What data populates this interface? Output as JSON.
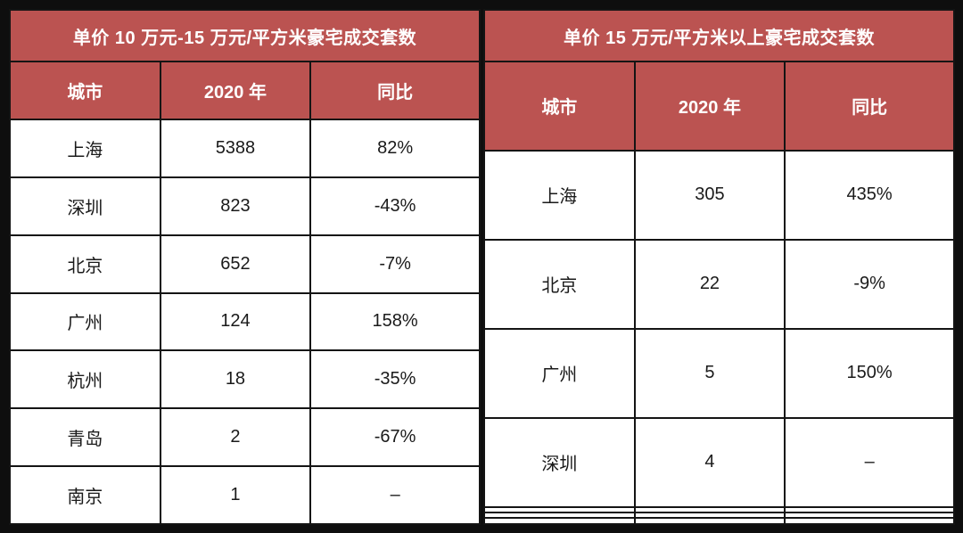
{
  "colors": {
    "header_bg": "#BB5351",
    "header_text": "#FFFFFF",
    "cell_bg": "#FFFFFF",
    "cell_text": "#1A1A1A",
    "frame": "#0E0E0E"
  },
  "chart_data": [
    {
      "type": "table",
      "title": "单价 10 万元-15 万元/平方米豪宅成交套数",
      "columns": [
        "城市",
        "2020 年",
        "同比"
      ],
      "rows": [
        [
          "上海",
          "5388",
          "82%"
        ],
        [
          "深圳",
          "823",
          "-43%"
        ],
        [
          "北京",
          "652",
          "-7%"
        ],
        [
          "广州",
          "124",
          "158%"
        ],
        [
          "杭州",
          "18",
          "-35%"
        ],
        [
          "青岛",
          "2",
          "-67%"
        ],
        [
          "南京",
          "1",
          "–"
        ]
      ]
    },
    {
      "type": "table",
      "title": "单价 15 万元/平方米以上豪宅成交套数",
      "columns": [
        "城市",
        "2020 年",
        "同比"
      ],
      "rows": [
        [
          "上海",
          "305",
          "435%"
        ],
        [
          "北京",
          "22",
          "-9%"
        ],
        [
          "广州",
          "5",
          "150%"
        ],
        [
          "深圳",
          "4",
          "–"
        ]
      ]
    }
  ]
}
